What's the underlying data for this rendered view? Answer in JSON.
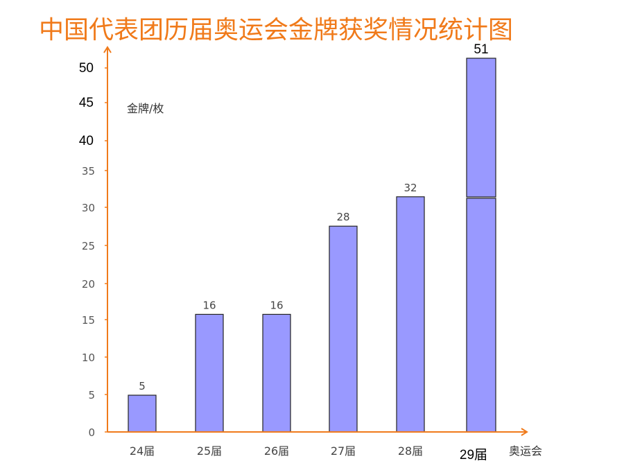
{
  "chart_data": {
    "type": "bar",
    "title": "中国代表团历届奥运会金牌获奖情况统计图",
    "ylabel": "金牌/枚",
    "xlabel": "奥运会",
    "categories": [
      "24届",
      "25届",
      "26届",
      "27届",
      "28届",
      "29届"
    ],
    "values": [
      5,
      16,
      16,
      28,
      32,
      51
    ],
    "yticks": [
      "0",
      "5",
      "10",
      "15",
      "20",
      "25",
      "30",
      "35",
      "40",
      "45",
      "50"
    ],
    "ylim": [
      0,
      50
    ],
    "bar_color": "#9999ff",
    "axis_color": "#f07a1a",
    "title_color": "#f07a1a",
    "grid": false
  }
}
